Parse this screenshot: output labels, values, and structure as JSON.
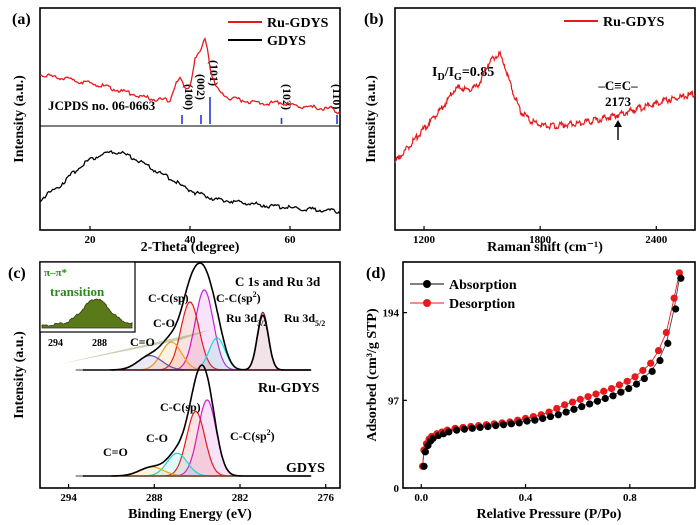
{
  "figure": {
    "panels": [
      {
        "id": "a",
        "panel_label": "(a)",
        "title": "",
        "xlabel": "2-Theta (degree)",
        "ylabel": "Intensity (a.u.)",
        "xlim": [
          10,
          70
        ],
        "x_ticks": [
          20,
          40,
          60
        ],
        "y_ticks": [],
        "legend": [
          "Ru-GDYS",
          "GDYS"
        ],
        "annotations": [
          "JCPDS no. 06-0663",
          "(100)",
          "(002)",
          "(101)",
          "(102)",
          "(110)"
        ]
      },
      {
        "id": "b",
        "panel_label": "(b)",
        "title": "",
        "xlabel": "Raman shift (cm⁻¹)",
        "ylabel": "Intensity (a.u.)",
        "xlim": [
          1050,
          2600
        ],
        "x_ticks": [
          1200,
          1800,
          2400
        ],
        "y_ticks": [],
        "legend": [
          "Ru-GDYS"
        ],
        "annotations": [
          "I",
          "D",
          "/I",
          "G",
          "=0.85",
          "–C≡C–",
          "2173"
        ]
      },
      {
        "id": "c",
        "panel_label": "(c)",
        "title": "C 1s and Ru 3d",
        "xlabel": "Binding Energy (eV)",
        "ylabel": "Intensity (a.u.)",
        "xlim": [
          296,
          275
        ],
        "x_ticks": [
          294,
          288,
          282,
          276
        ],
        "y_ticks": [],
        "legend": [],
        "annotations": [
          "C-C(sp)",
          "C-C(sp",
          "2",
          ")",
          "C-O",
          "C=O",
          "Ru 3d",
          "3/2",
          "Ru 3d",
          "5/2",
          "Ru-GDYS",
          "GDYS",
          "C-C(sp)",
          "C-O",
          "C-C(sp",
          "2",
          ")",
          "C=O"
        ],
        "inset": {
          "label": "π–π*",
          "label2": "transition",
          "x_ticks": [
            294,
            288
          ]
        }
      },
      {
        "id": "d",
        "panel_label": "(d)",
        "title": "",
        "xlabel": "Relative Pressure (P/Po)",
        "ylabel": "Adsorbed (cm³/g STP)",
        "xlim": [
          -0.07,
          1.05
        ],
        "ylim": [
          0,
          250
        ],
        "x_ticks": [
          0.0,
          0.4,
          0.8
        ],
        "y_ticks": [
          0,
          97,
          194
        ],
        "legend": [
          "Absorption",
          "Desorption"
        ],
        "annotations": []
      }
    ]
  },
  "chart_data": [
    {
      "type": "line",
      "panel": "a",
      "x": [
        10,
        14,
        18,
        22,
        26,
        30,
        34,
        36,
        37,
        38,
        39,
        40,
        41,
        42,
        43,
        43.5,
        44,
        45,
        46,
        48,
        52,
        56,
        58,
        60,
        64,
        68,
        69,
        70
      ],
      "series": [
        {
          "name": "Ru-GDYS",
          "values": [
            1.2,
            1.1,
            1.0,
            0.9,
            0.75,
            0.6,
            0.5,
            0.5,
            0.9,
            1.1,
            0.8,
            0.9,
            1.6,
            1.8,
            2.2,
            1.9,
            1.4,
            0.9,
            0.7,
            0.55,
            0.45,
            0.4,
            0.45,
            0.35,
            0.3,
            0.25,
            0.2,
            0.15
          ]
        },
        {
          "name": "GDYS",
          "values": [
            0.3,
            0.6,
            1.0,
            1.25,
            1.3,
            1.1,
            0.85,
            0.75,
            0.7,
            0.6,
            0.55,
            0.5,
            0.45,
            0.42,
            0.38,
            0.37,
            0.35,
            0.32,
            0.3,
            0.27,
            0.22,
            0.17,
            0.15,
            0.13,
            0.1,
            0.07,
            0.06,
            0.05
          ]
        }
      ],
      "reference_lines": {
        "name": "JCPDS no. 06-0663",
        "positions": [
          38.4,
          42.2,
          44.0,
          58.3,
          69.4
        ],
        "heights": [
          0.3,
          0.3,
          0.9,
          0.2,
          0.3
        ]
      },
      "peak_labels": [
        "(100)",
        "(002)",
        "(101)",
        "(102)",
        "(110)"
      ]
    },
    {
      "type": "line",
      "panel": "b",
      "x": [
        1050,
        1150,
        1250,
        1300,
        1350,
        1380,
        1420,
        1470,
        1500,
        1530,
        1570,
        1590,
        1620,
        1650,
        1700,
        1750,
        1800,
        1850,
        1900,
        2000,
        2100,
        2173,
        2250,
        2350,
        2450,
        2600
      ],
      "series": [
        {
          "name": "Ru-GDYS",
          "values": [
            0.05,
            0.25,
            0.45,
            0.55,
            0.68,
            0.72,
            0.7,
            0.72,
            0.8,
            0.92,
            1.0,
            1.02,
            0.9,
            0.72,
            0.5,
            0.42,
            0.38,
            0.37,
            0.38,
            0.4,
            0.43,
            0.46,
            0.5,
            0.55,
            0.6,
            0.66
          ]
        }
      ],
      "annotations": {
        "ID_IG": 0.85,
        "alkyne_peak_cm": 2173
      }
    },
    {
      "type": "line",
      "panel": "c",
      "xlabel": "Binding Energy (eV)",
      "x_reversed": true,
      "series": [
        {
          "name": "Ru-GDYS envelope",
          "peaks": [
            {
              "center": 284.5,
              "height": 1.0,
              "width": 0.9
            },
            {
              "center": 285.5,
              "height": 0.85,
              "width": 0.9
            },
            {
              "center": 283.6,
              "height": 0.4,
              "width": 0.8
            },
            {
              "center": 286.8,
              "height": 0.35,
              "width": 1.0
            },
            {
              "center": 288.3,
              "height": 0.18,
              "width": 1.2
            },
            {
              "center": 280.4,
              "height": 0.72,
              "width": 0.55
            }
          ]
        },
        {
          "name": "GDYS envelope",
          "peaks": [
            {
              "center": 284.3,
              "height": 1.0,
              "width": 0.9
            },
            {
              "center": 285.1,
              "height": 0.85,
              "width": 0.9
            },
            {
              "center": 286.4,
              "height": 0.3,
              "width": 1.0
            },
            {
              "center": 288.2,
              "height": 0.12,
              "width": 1.2
            }
          ]
        }
      ],
      "components": [
        "C-C(sp)",
        "C-C(sp2)",
        "C-O",
        "C=O",
        "Ru 3d3/2",
        "Ru 3d5/2"
      ]
    },
    {
      "type": "scatter",
      "panel": "d",
      "x": [
        0.005,
        0.01,
        0.02,
        0.03,
        0.04,
        0.06,
        0.08,
        0.1,
        0.13,
        0.16,
        0.19,
        0.22,
        0.25,
        0.28,
        0.31,
        0.34,
        0.37,
        0.4,
        0.43,
        0.46,
        0.49,
        0.52,
        0.55,
        0.58,
        0.61,
        0.64,
        0.67,
        0.7,
        0.73,
        0.76,
        0.79,
        0.82,
        0.85,
        0.88,
        0.91,
        0.94,
        0.97,
        0.99
      ],
      "series": [
        {
          "name": "Absorption",
          "values": [
            24,
            40,
            47,
            52,
            55,
            58,
            60,
            62,
            64,
            65,
            66,
            67,
            68,
            69,
            70,
            71,
            72,
            74,
            75,
            77,
            79,
            81,
            84,
            87,
            90,
            93,
            96,
            99,
            102,
            106,
            110,
            115,
            121,
            129,
            141,
            160,
            198,
            232
          ]
        },
        {
          "name": "Desorption",
          "values": [
            24,
            42,
            49,
            54,
            57,
            60,
            62,
            64,
            66,
            67,
            68,
            69,
            70,
            71,
            72,
            73,
            75,
            77,
            79,
            81,
            84,
            88,
            92,
            95,
            98,
            101,
            104,
            107,
            110,
            114,
            118,
            123,
            130,
            138,
            152,
            172,
            210,
            238
          ]
        }
      ],
      "ylim": [
        0,
        250
      ],
      "y_ticks": [
        0,
        97,
        194
      ]
    }
  ]
}
